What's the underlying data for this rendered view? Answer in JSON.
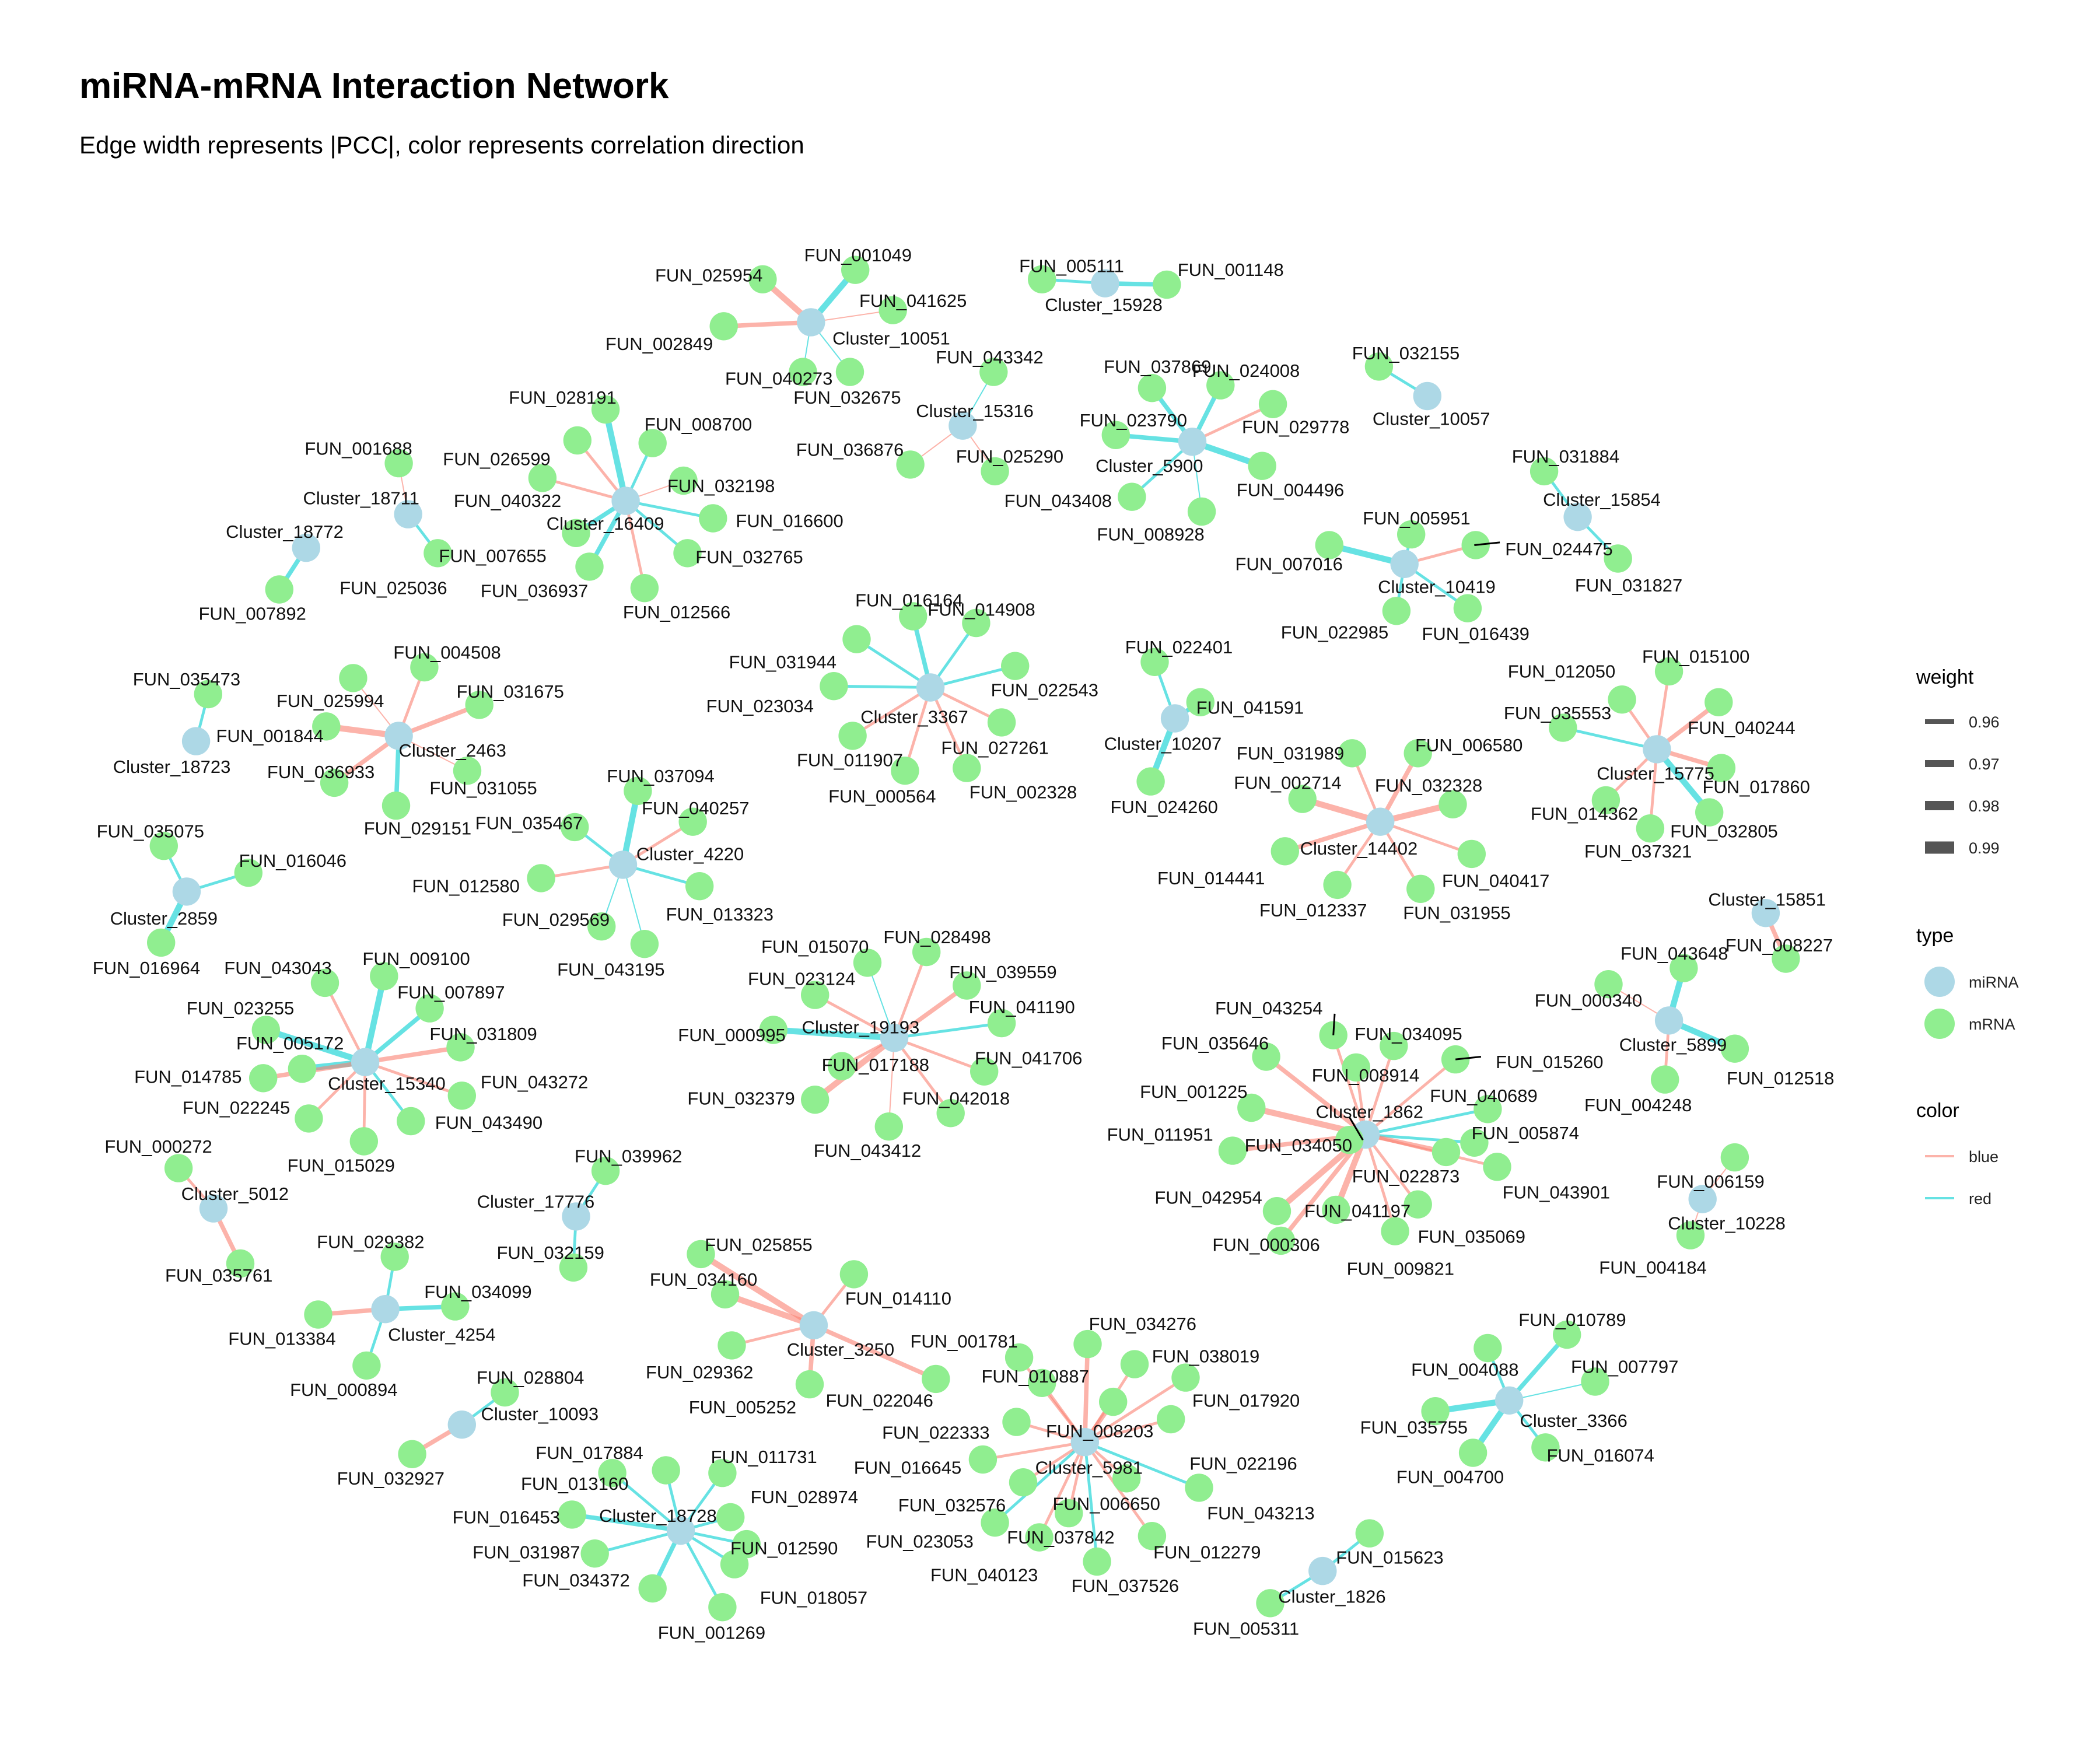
{
  "title": "miRNA-mRNA Interaction Network",
  "subtitle": "Edge width represents |PCC|, color represents correlation direction",
  "colors": {
    "miRNA": "#ADD8E6",
    "mRNA": "#90EE90",
    "blue": "#FA8072",
    "red": "#00CED1"
  },
  "legend": {
    "weight": {
      "title": "weight",
      "items": [
        "0.96",
        "0.97",
        "0.98",
        "0.99"
      ]
    },
    "type": {
      "title": "type",
      "items": [
        "miRNA",
        "mRNA"
      ]
    },
    "color": {
      "title": "color",
      "items": [
        "blue",
        "red"
      ]
    }
  },
  "chart_data": {
    "type": "network",
    "clusters": [
      {
        "id": "Cluster_10051",
        "edges": [
          [
            "FUN_001049",
            "red",
            0.99
          ],
          [
            "FUN_025954",
            "blue",
            0.99
          ],
          [
            "FUN_041625",
            "blue",
            0.96
          ],
          [
            "FUN_002849",
            "blue",
            0.98
          ],
          [
            "FUN_040273",
            "red",
            0.96
          ],
          [
            "FUN_032675",
            "red",
            0.96
          ]
        ]
      },
      {
        "id": "Cluster_15928",
        "edges": [
          [
            "FUN_005111",
            "red",
            0.97
          ],
          [
            "FUN_001148",
            "red",
            0.98
          ]
        ]
      },
      {
        "id": "Cluster_10057",
        "edges": [
          [
            "FUN_032155",
            "red",
            0.97
          ]
        ]
      },
      {
        "id": "Cluster_15316",
        "edges": [
          [
            "FUN_043342",
            "red",
            0.96
          ],
          [
            "FUN_036876",
            "blue",
            0.96
          ],
          [
            "FUN_025290",
            "blue",
            0.96
          ]
        ]
      },
      {
        "id": "Cluster_5900",
        "edges": [
          [
            "FUN_037869",
            "red",
            0.98
          ],
          [
            "FUN_024008",
            "red",
            0.98
          ],
          [
            "FUN_023790",
            "red",
            0.98
          ],
          [
            "FUN_029778",
            "blue",
            0.97
          ],
          [
            "FUN_004496",
            "red",
            0.99
          ],
          [
            "FUN_043408",
            "red",
            0.97
          ],
          [
            "FUN_008928",
            "red",
            0.96
          ]
        ]
      },
      {
        "id": "Cluster_15854",
        "edges": [
          [
            "FUN_031884",
            "red",
            0.97
          ],
          [
            "FUN_031827",
            "red",
            0.97
          ]
        ]
      },
      {
        "id": "Cluster_10419",
        "edges": [
          [
            "FUN_005951",
            "red",
            0.97
          ],
          [
            "FUN_024475",
            "blue",
            0.97
          ],
          [
            "FUN_007016",
            "red",
            0.99
          ],
          [
            "FUN_022985",
            "red",
            0.97
          ],
          [
            "FUN_016439",
            "red",
            0.97
          ]
        ]
      },
      {
        "id": "Cluster_18711",
        "edges": [
          [
            "FUN_001688",
            "blue",
            0.96
          ],
          [
            "FUN_025036",
            "red",
            0.97
          ]
        ]
      },
      {
        "id": "Cluster_18772",
        "edges": [
          [
            "FUN_007892",
            "red",
            0.98
          ]
        ]
      },
      {
        "id": "Cluster_16409",
        "edges": [
          [
            "FUN_028191",
            "red",
            0.99
          ],
          [
            "FUN_008700",
            "red",
            0.97
          ],
          [
            "FUN_026599",
            "blue",
            0.97
          ],
          [
            "FUN_032198",
            "blue",
            0.96
          ],
          [
            "FUN_040322",
            "blue",
            0.97
          ],
          [
            "FUN_016600",
            "red",
            0.97
          ],
          [
            "FUN_007655",
            "red",
            0.98
          ],
          [
            "FUN_032765",
            "red",
            0.97
          ],
          [
            "FUN_036937",
            "red",
            0.98
          ],
          [
            "FUN_012566",
            "blue",
            0.97
          ]
        ]
      },
      {
        "id": "Cluster_3367",
        "edges": [
          [
            "FUN_016164",
            "red",
            0.98
          ],
          [
            "FUN_014908",
            "red",
            0.97
          ],
          [
            "FUN_031944",
            "red",
            0.97
          ],
          [
            "FUN_022543",
            "red",
            0.97
          ],
          [
            "FUN_023034",
            "red",
            0.97
          ],
          [
            "FUN_011907",
            "blue",
            0.97
          ],
          [
            "FUN_027261",
            "blue",
            0.97
          ],
          [
            "FUN_000564",
            "blue",
            0.97
          ],
          [
            "FUN_002328",
            "blue",
            0.97
          ]
        ]
      },
      {
        "id": "Cluster_10207",
        "edges": [
          [
            "FUN_022401",
            "red",
            0.97
          ],
          [
            "FUN_041591",
            "red",
            0.98
          ],
          [
            "FUN_024260",
            "red",
            0.99
          ]
        ]
      },
      {
        "id": "Cluster_15775",
        "edges": [
          [
            "FUN_015100",
            "blue",
            0.97
          ],
          [
            "FUN_012050",
            "blue",
            0.97
          ],
          [
            "FUN_040244",
            "blue",
            0.98
          ],
          [
            "FUN_035553",
            "red",
            0.97
          ],
          [
            "FUN_017860",
            "blue",
            0.98
          ],
          [
            "FUN_014362",
            "blue",
            0.97
          ],
          [
            "FUN_032805",
            "red",
            0.99
          ],
          [
            "FUN_037321",
            "blue",
            0.97
          ]
        ]
      },
      {
        "id": "Cluster_18723",
        "edges": [
          [
            "FUN_035473",
            "red",
            0.97
          ]
        ]
      },
      {
        "id": "Cluster_2463",
        "edges": [
          [
            "FUN_004508",
            "blue",
            0.97
          ],
          [
            "FUN_025994",
            "blue",
            0.96
          ],
          [
            "FUN_031675",
            "blue",
            0.98
          ],
          [
            "FUN_001844",
            "blue",
            0.99
          ],
          [
            "FUN_036933",
            "blue",
            0.98
          ],
          [
            "FUN_031055",
            "blue",
            0.96
          ],
          [
            "FUN_029151",
            "red",
            0.98
          ]
        ]
      },
      {
        "id": "Cluster_14402",
        "edges": [
          [
            "FUN_031989",
            "blue",
            0.97
          ],
          [
            "FUN_006580",
            "blue",
            0.98
          ],
          [
            "FUN_002714",
            "blue",
            0.99
          ],
          [
            "FUN_032328",
            "blue",
            0.99
          ],
          [
            "FUN_014441",
            "blue",
            0.98
          ],
          [
            "FUN_040417",
            "blue",
            0.97
          ],
          [
            "FUN_012337",
            "blue",
            0.97
          ],
          [
            "FUN_031955",
            "blue",
            0.97
          ]
        ]
      },
      {
        "id": "Cluster_4220",
        "edges": [
          [
            "FUN_037094",
            "red",
            0.99
          ],
          [
            "FUN_040257",
            "blue",
            0.97
          ],
          [
            "FUN_035467",
            "red",
            0.97
          ],
          [
            "FUN_012580",
            "blue",
            0.97
          ],
          [
            "FUN_013323",
            "red",
            0.97
          ],
          [
            "FUN_029569",
            "red",
            0.96
          ],
          [
            "FUN_043195",
            "red",
            0.96
          ]
        ]
      },
      {
        "id": "Cluster_2859",
        "edges": [
          [
            "FUN_035075",
            "red",
            0.97
          ],
          [
            "FUN_016046",
            "red",
            0.97
          ],
          [
            "FUN_016964",
            "red",
            0.99
          ]
        ]
      },
      {
        "id": "Cluster_15851",
        "edges": [
          [
            "FUN_008227",
            "blue",
            0.98
          ]
        ]
      },
      {
        "id": "Cluster_5899",
        "edges": [
          [
            "FUN_043648",
            "red",
            0.99
          ],
          [
            "FUN_000340",
            "blue",
            0.96
          ],
          [
            "FUN_012518",
            "red",
            0.99
          ],
          [
            "FUN_004248",
            "blue",
            0.97
          ]
        ]
      },
      {
        "id": "Cluster_15340",
        "edges": [
          [
            "FUN_009100",
            "red",
            0.99
          ],
          [
            "FUN_043043",
            "blue",
            0.97
          ],
          [
            "FUN_007897",
            "red",
            0.98
          ],
          [
            "FUN_023255",
            "red",
            0.99
          ],
          [
            "FUN_031809",
            "blue",
            0.98
          ],
          [
            "FUN_005172",
            "red",
            0.99
          ],
          [
            "FUN_043272",
            "blue",
            0.97
          ],
          [
            "FUN_014785",
            "blue",
            0.98
          ],
          [
            "FUN_022245",
            "blue",
            0.97
          ],
          [
            "FUN_043490",
            "red",
            0.97
          ],
          [
            "FUN_015029",
            "blue",
            0.97
          ]
        ]
      },
      {
        "id": "Cluster_19193",
        "edges": [
          [
            "FUN_015070",
            "red",
            0.96
          ],
          [
            "FUN_028498",
            "blue",
            0.97
          ],
          [
            "FUN_039559",
            "blue",
            0.98
          ],
          [
            "FUN_023124",
            "blue",
            0.97
          ],
          [
            "FUN_041190",
            "red",
            0.97
          ],
          [
            "FUN_000995",
            "red",
            0.99
          ],
          [
            "FUN_041706",
            "blue",
            0.97
          ],
          [
            "FUN_017188",
            "blue",
            0.97
          ],
          [
            "FUN_032379",
            "blue",
            0.99
          ],
          [
            "FUN_042018",
            "blue",
            0.97
          ],
          [
            "FUN_043412",
            "blue",
            0.96
          ]
        ]
      },
      {
        "id": "Cluster_1862",
        "edges": [
          [
            "FUN_043254",
            "blue",
            0.97
          ],
          [
            "FUN_034095",
            "blue",
            0.97
          ],
          [
            "FUN_035646",
            "blue",
            0.98
          ],
          [
            "FUN_008914",
            "blue",
            0.97
          ],
          [
            "FUN_015260",
            "blue",
            0.97
          ],
          [
            "FUN_001225",
            "blue",
            0.99
          ],
          [
            "FUN_040689",
            "red",
            0.97
          ],
          [
            "FUN_005874",
            "red",
            0.97
          ],
          [
            "FUN_011951",
            "blue",
            0.98
          ],
          [
            "FUN_034050",
            "blue",
            0.98
          ],
          [
            "FUN_022873",
            "blue",
            0.98
          ],
          [
            "FUN_043901",
            "blue",
            0.97
          ],
          [
            "FUN_042954",
            "blue",
            0.99
          ],
          [
            "FUN_041197",
            "blue",
            0.99
          ],
          [
            "FUN_000306",
            "blue",
            0.98
          ],
          [
            "FUN_035069",
            "blue",
            0.97
          ],
          [
            "FUN_009821",
            "blue",
            0.97
          ]
        ]
      },
      {
        "id": "Cluster_5012",
        "edges": [
          [
            "FUN_000272",
            "blue",
            0.97
          ],
          [
            "FUN_035761",
            "blue",
            0.98
          ]
        ]
      },
      {
        "id": "Cluster_17776",
        "edges": [
          [
            "FUN_039962",
            "red",
            0.97
          ],
          [
            "FUN_032159",
            "red",
            0.97
          ]
        ]
      },
      {
        "id": "Cluster_10228",
        "edges": [
          [
            "FUN_006159",
            "blue",
            0.96
          ],
          [
            "FUN_004184",
            "blue",
            0.96
          ]
        ]
      },
      {
        "id": "Cluster_4254",
        "edges": [
          [
            "FUN_029382",
            "red",
            0.97
          ],
          [
            "FUN_034099",
            "red",
            0.98
          ],
          [
            "FUN_013384",
            "blue",
            0.98
          ],
          [
            "FUN_000894",
            "red",
            0.97
          ]
        ]
      },
      {
        "id": "Cluster_3250",
        "edges": [
          [
            "FUN_025855",
            "blue",
            0.99
          ],
          [
            "FUN_034160",
            "blue",
            0.99
          ],
          [
            "FUN_014110",
            "blue",
            0.97
          ],
          [
            "FUN_029362",
            "blue",
            0.97
          ],
          [
            "FUN_022046",
            "blue",
            0.98
          ],
          [
            "FUN_005252",
            "blue",
            0.98
          ]
        ]
      },
      {
        "id": "Cluster_10093",
        "edges": [
          [
            "FUN_028804",
            "red",
            0.97
          ],
          [
            "FUN_032927",
            "blue",
            0.98
          ]
        ]
      },
      {
        "id": "Cluster_3366",
        "edges": [
          [
            "FUN_010789",
            "red",
            0.98
          ],
          [
            "FUN_004088",
            "red",
            0.97
          ],
          [
            "FUN_007797",
            "red",
            0.96
          ],
          [
            "FUN_035755",
            "red",
            0.99
          ],
          [
            "FUN_016074",
            "red",
            0.97
          ],
          [
            "FUN_004700",
            "red",
            0.99
          ]
        ]
      },
      {
        "id": "Cluster_5981",
        "edges": [
          [
            "FUN_034276",
            "blue",
            0.98
          ],
          [
            "FUN_001781",
            "blue",
            0.97
          ],
          [
            "FUN_038019",
            "blue",
            0.97
          ],
          [
            "FUN_010887",
            "blue",
            0.97
          ],
          [
            "FUN_017920",
            "blue",
            0.97
          ],
          [
            "FUN_008203",
            "blue",
            0.98
          ],
          [
            "FUN_022333",
            "blue",
            0.97
          ],
          [
            "FUN_022196",
            "blue",
            0.97
          ],
          [
            "FUN_016645",
            "blue",
            0.97
          ],
          [
            "FUN_043213",
            "red",
            0.97
          ],
          [
            "FUN_032576",
            "blue",
            0.97
          ],
          [
            "FUN_006650",
            "blue",
            0.97
          ],
          [
            "FUN_023053",
            "red",
            0.97
          ],
          [
            "FUN_037842",
            "blue",
            0.97
          ],
          [
            "FUN_012279",
            "blue",
            0.97
          ],
          [
            "FUN_040123",
            "blue",
            0.97
          ],
          [
            "FUN_037526",
            "red",
            0.97
          ]
        ]
      },
      {
        "id": "Cluster_18728",
        "edges": [
          [
            "FUN_017884",
            "red",
            0.97
          ],
          [
            "FUN_011731",
            "red",
            0.97
          ],
          [
            "FUN_013160",
            "red",
            0.97
          ],
          [
            "FUN_028974",
            "red",
            0.97
          ],
          [
            "FUN_016453",
            "red",
            0.98
          ],
          [
            "FUN_012590",
            "red",
            0.97
          ],
          [
            "FUN_031987",
            "red",
            0.97
          ],
          [
            "FUN_018057",
            "red",
            0.97
          ],
          [
            "FUN_034372",
            "red",
            0.98
          ],
          [
            "FUN_001269",
            "red",
            0.97
          ]
        ]
      },
      {
        "id": "Cluster_1826",
        "edges": [
          [
            "FUN_015623",
            "red",
            0.97
          ],
          [
            "FUN_005311",
            "red",
            0.97
          ]
        ]
      }
    ]
  }
}
